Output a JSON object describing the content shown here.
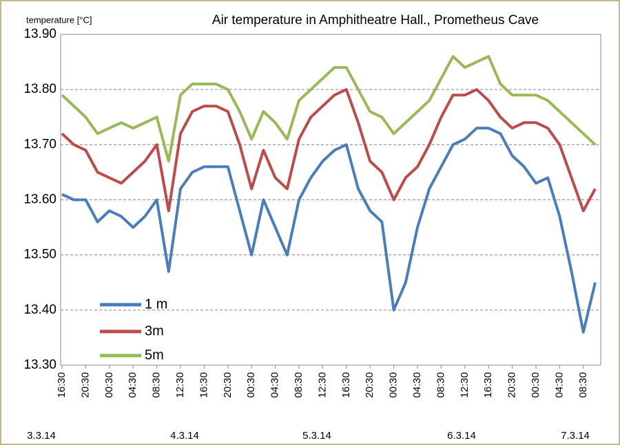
{
  "chart_data": {
    "type": "line",
    "title": "Air temperature in  Amphitheatre Hall., Prometheus Cave",
    "y_label": "temperature [°C]",
    "categories": [
      "16:30",
      null,
      "20:30",
      null,
      "00:30",
      null,
      "04:30",
      null,
      "08:30",
      null,
      "12:30",
      null,
      "16:30",
      null,
      "20:30",
      null,
      "00:30",
      null,
      "04:30",
      null,
      "08:30",
      null,
      "12:30",
      null,
      "16:30",
      null,
      "20:30",
      null,
      "00:30",
      null,
      "04:30",
      null,
      "08:30",
      null,
      "12:30",
      null,
      "16:30",
      null,
      "20:30",
      null,
      "00:30",
      null,
      "04:30",
      null,
      "08:30",
      null
    ],
    "date_labels": [
      "3.3.14",
      "4.3.14",
      "5.3.14",
      "6.3.14",
      "7.3.14"
    ],
    "series": [
      {
        "name": "1 m",
        "color": "#4a7ebb",
        "values": [
          13.61,
          13.6,
          13.6,
          13.56,
          13.58,
          13.57,
          13.55,
          13.57,
          13.6,
          13.47,
          13.62,
          13.65,
          13.66,
          13.66,
          13.66,
          13.58,
          13.5,
          13.6,
          13.55,
          13.5,
          13.6,
          13.64,
          13.67,
          13.69,
          13.7,
          13.62,
          13.58,
          13.56,
          13.4,
          13.45,
          13.55,
          13.62,
          13.66,
          13.7,
          13.71,
          13.73,
          13.73,
          13.72,
          13.68,
          13.66,
          13.63,
          13.64,
          13.57,
          13.47,
          13.36,
          13.45
        ]
      },
      {
        "name": "3m",
        "color": "#be4b48",
        "values": [
          13.72,
          13.7,
          13.69,
          13.65,
          13.64,
          13.63,
          13.65,
          13.67,
          13.7,
          13.58,
          13.72,
          13.76,
          13.77,
          13.77,
          13.76,
          13.7,
          13.62,
          13.69,
          13.64,
          13.62,
          13.71,
          13.75,
          13.77,
          13.79,
          13.8,
          13.74,
          13.67,
          13.65,
          13.6,
          13.64,
          13.66,
          13.7,
          13.75,
          13.79,
          13.79,
          13.8,
          13.78,
          13.75,
          13.73,
          13.74,
          13.74,
          13.73,
          13.7,
          13.64,
          13.58,
          13.62
        ]
      },
      {
        "name": "5m",
        "color": "#98b954",
        "values": [
          13.79,
          13.77,
          13.75,
          13.72,
          13.73,
          13.74,
          13.73,
          13.74,
          13.75,
          13.67,
          13.79,
          13.81,
          13.81,
          13.81,
          13.8,
          13.76,
          13.71,
          13.76,
          13.74,
          13.71,
          13.78,
          13.8,
          13.82,
          13.84,
          13.84,
          13.8,
          13.76,
          13.75,
          13.72,
          13.74,
          13.76,
          13.78,
          13.82,
          13.86,
          13.84,
          13.85,
          13.86,
          13.81,
          13.79,
          13.79,
          13.79,
          13.78,
          13.76,
          13.74,
          13.72,
          13.7
        ]
      }
    ],
    "ylim": [
      13.3,
      13.9
    ],
    "yticks": [
      {
        "value": 13.3,
        "label": "13.30"
      },
      {
        "value": 13.4,
        "label": "13.40"
      },
      {
        "value": 13.5,
        "label": "13.50"
      },
      {
        "value": 13.6,
        "label": "13.60"
      },
      {
        "value": 13.7,
        "label": "13.70"
      },
      {
        "value": 13.8,
        "label": "13.80"
      },
      {
        "value": 13.9,
        "label": "13.90"
      }
    ],
    "grid": true,
    "legend": "lower left"
  }
}
